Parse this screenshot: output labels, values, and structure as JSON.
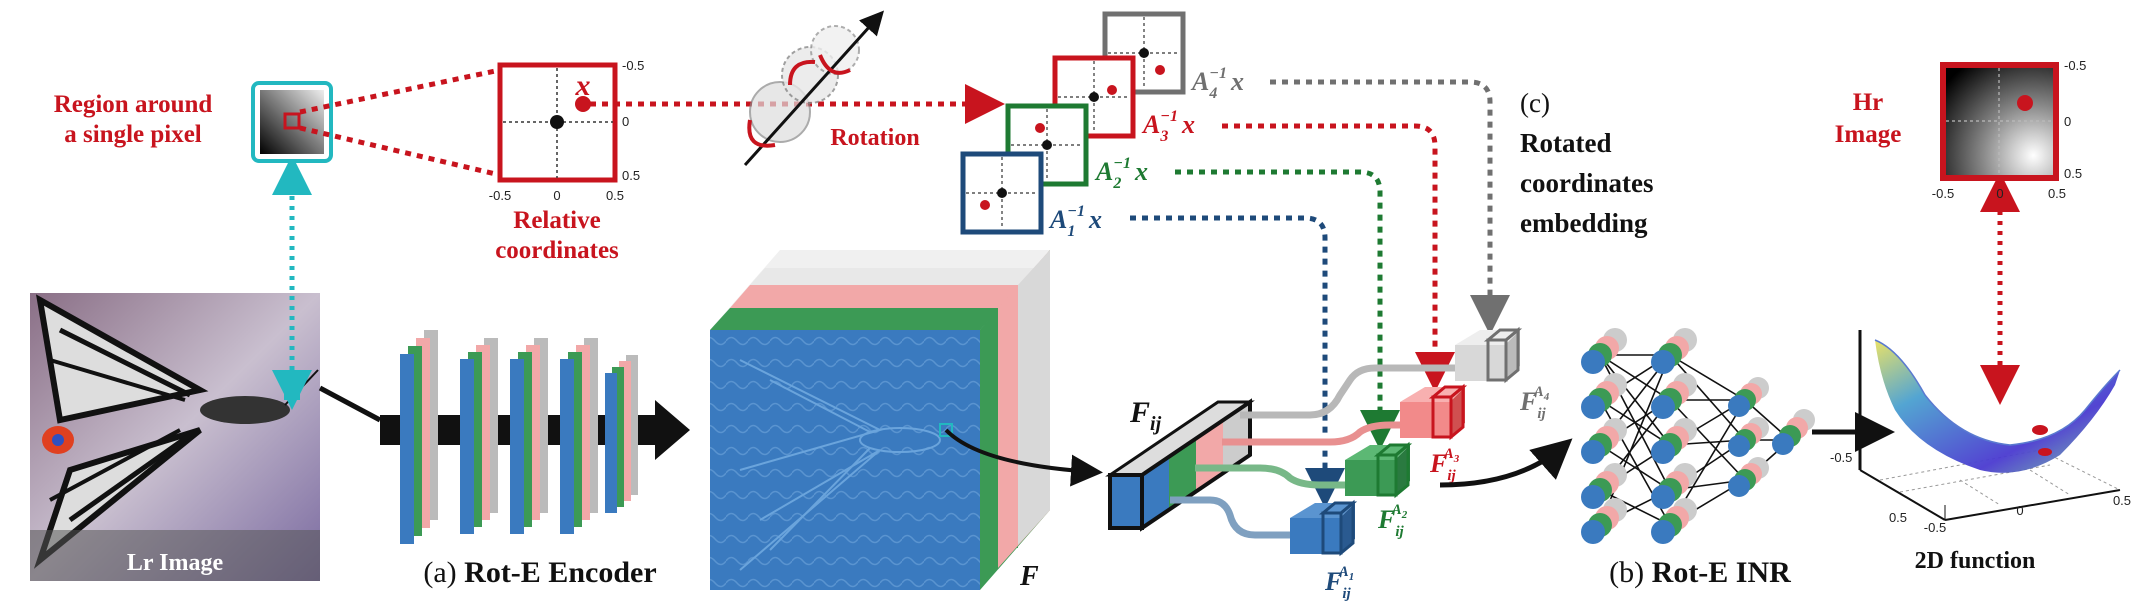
{
  "labels": {
    "region_line1": "Region around",
    "region_line2": "a single pixel",
    "relative_line1": "Relative",
    "relative_line2": "coordinates",
    "rotation": "Rotation",
    "lr_image": "Lr Image",
    "encoder_prefix": "(a) ",
    "encoder_name": "Rot-E Encoder",
    "feature_F": "F",
    "feature_Fij": "F",
    "feature_Fij_sub": "ij",
    "inr_prefix": "(b) ",
    "inr_name": "Rot-E INR",
    "func_2d": "2D function",
    "hr_line1": "Hr",
    "hr_line2": "Image",
    "section_c": "(c)",
    "c_line1": "Rotated",
    "c_line2": "coordinates",
    "c_line3": "embedding",
    "x_symbol": "x"
  },
  "rotated_coords": [
    {
      "name": "A4",
      "text": "A",
      "sub": "4",
      "sup": "−1",
      "tail": "x",
      "color": "#707070"
    },
    {
      "name": "A3",
      "text": "A",
      "sub": "3",
      "sup": "−1",
      "tail": "x",
      "color": "#c8141e"
    },
    {
      "name": "A2",
      "text": "A",
      "sub": "2",
      "sup": "−1",
      "tail": "x",
      "color": "#1e7a32"
    },
    {
      "name": "A1",
      "text": "A",
      "sub": "1",
      "sup": "−1",
      "tail": "x",
      "color": "#1e4a7a"
    }
  ],
  "rotated_features": [
    {
      "name": "FA4",
      "text": "F",
      "sub": "ij",
      "sup": "A",
      "supsub": "4",
      "color": "#707070"
    },
    {
      "name": "FA3",
      "text": "F",
      "sub": "ij",
      "sup": "A",
      "supsub": "3",
      "color": "#c8141e"
    },
    {
      "name": "FA2",
      "text": "F",
      "sub": "ij",
      "sup": "A",
      "supsub": "2",
      "color": "#1e7a32"
    },
    {
      "name": "FA1",
      "text": "F",
      "sub": "ij",
      "sup": "A",
      "supsub": "1",
      "color": "#1e4a7a"
    }
  ],
  "ticks": {
    "rel_x": [
      "-0.5",
      "0",
      "0.5"
    ],
    "rel_y": [
      "-0.5",
      "0",
      "0.5"
    ],
    "hr_x": [
      "-0.5",
      "0",
      "0.5"
    ],
    "hr_y": [
      "-0.5",
      "0",
      "0.5"
    ],
    "surf_x": [
      "-0.5",
      "0",
      "0.5"
    ],
    "surf_y": [
      "0.5",
      "0",
      "-0.5"
    ]
  },
  "colors": {
    "red": "#c8141e",
    "green": "#1e7a32",
    "blue": "#1e4a7a",
    "gray": "#707070",
    "cyan": "#22b8c0",
    "feature_blue": "#3a7abf"
  }
}
